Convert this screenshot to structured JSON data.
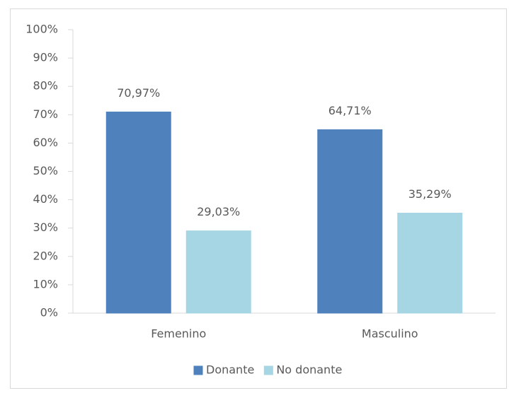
{
  "chart_data": {
    "type": "bar",
    "categories": [
      "Femenino",
      "Masculino"
    ],
    "series": [
      {
        "name": "Donante",
        "color": "#4f81bd",
        "values": [
          70.97,
          64.71
        ],
        "value_labels": [
          "70,97%",
          "64,71%"
        ]
      },
      {
        "name": "No donante",
        "color": "#a6d6e3",
        "values": [
          29.03,
          35.29
        ],
        "value_labels": [
          "29,03%",
          "35,29%"
        ]
      }
    ],
    "ylim": [
      0,
      100
    ],
    "yticks": [
      {
        "value": 0,
        "label": "0%"
      },
      {
        "value": 10,
        "label": "10%"
      },
      {
        "value": 20,
        "label": "20%"
      },
      {
        "value": 30,
        "label": "30%"
      },
      {
        "value": 40,
        "label": "40%"
      },
      {
        "value": 50,
        "label": "50%"
      },
      {
        "value": 60,
        "label": "60%"
      },
      {
        "value": 70,
        "label": "70%"
      },
      {
        "value": 80,
        "label": "80%"
      },
      {
        "value": 90,
        "label": "90%"
      },
      {
        "value": 100,
        "label": "100%"
      }
    ],
    "grid": false,
    "legend": "bottom"
  }
}
